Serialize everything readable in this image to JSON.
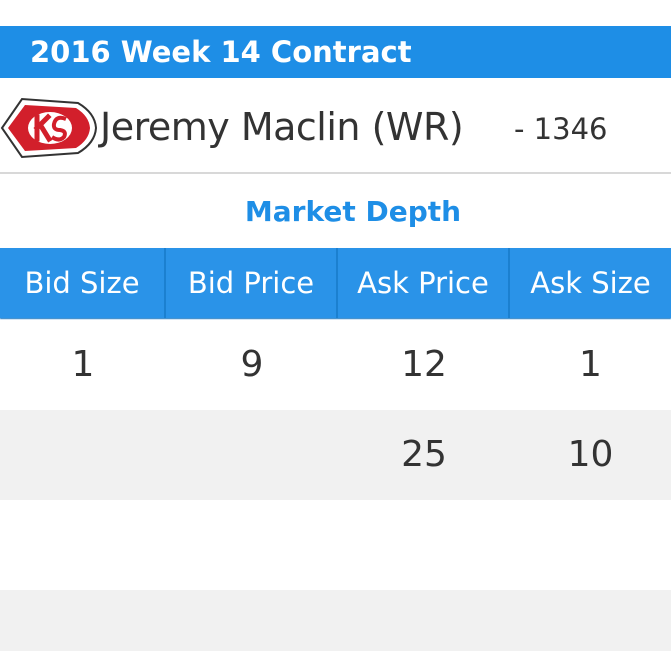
{
  "contract": {
    "title": "2016 Week 14 Contract"
  },
  "player": {
    "team_logo_icon": "kansas-city-chiefs-arrowhead-icon",
    "name": "Jeremy Maclin (WR)",
    "id_text": "- 1346"
  },
  "market_depth": {
    "title": "Market Depth",
    "columns": [
      "Bid Size",
      "Bid Price",
      "Ask Price",
      "Ask Size"
    ],
    "rows": [
      [
        "1",
        "9",
        "12",
        "1"
      ],
      [
        "",
        "",
        "25",
        "10"
      ],
      [
        "",
        "",
        "",
        ""
      ],
      [
        "",
        "",
        "",
        ""
      ]
    ]
  },
  "colors": {
    "accent_blue": "#1e8ee6",
    "header_blue": "#2a93e8",
    "row_alt_grey": "#f1f1f1",
    "logo_red": "#d21f2b"
  }
}
